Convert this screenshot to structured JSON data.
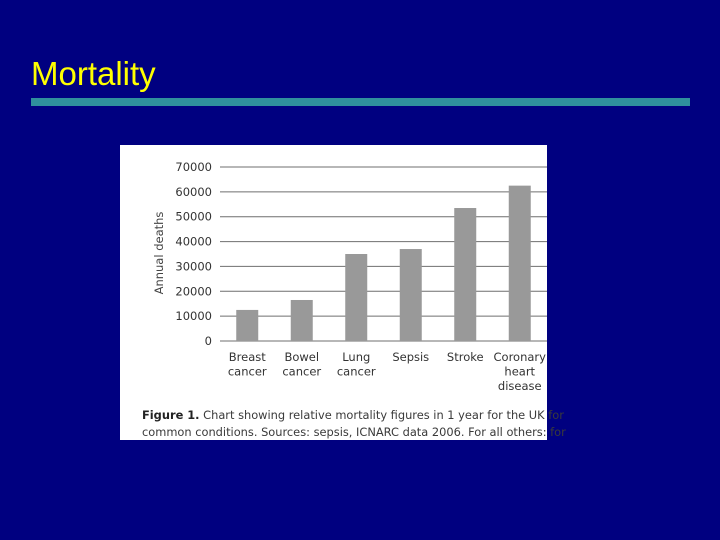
{
  "slide": {
    "title": "Mortality",
    "title_color": "#ffff00",
    "background_color": "#000080",
    "rule_color": "#2f8f9d"
  },
  "caption": {
    "label": "Figure 1.",
    "line1": "Chart showing relative mortality figures in 1 year for the UK for",
    "line2": "common conditions. Sources: sepsis, ICNARC data 2006. For all others: for"
  },
  "chart_data": {
    "type": "bar",
    "title": "",
    "xlabel": "",
    "ylabel": "Annual deaths",
    "ylim": [
      0,
      70000
    ],
    "yticks": [
      "0",
      "10000",
      "20000",
      "30000",
      "40000",
      "50000",
      "60000",
      "70000"
    ],
    "grid": true,
    "bar_color": "#999999",
    "categories": [
      [
        "Breast",
        "cancer"
      ],
      [
        "Bowel",
        "cancer"
      ],
      [
        "Lung",
        "cancer"
      ],
      [
        "Sepsis"
      ],
      [
        "Stroke"
      ],
      [
        "Coronary",
        "heart",
        "disease"
      ]
    ],
    "values": [
      12500,
      16500,
      35000,
      37000,
      53500,
      62500
    ]
  }
}
